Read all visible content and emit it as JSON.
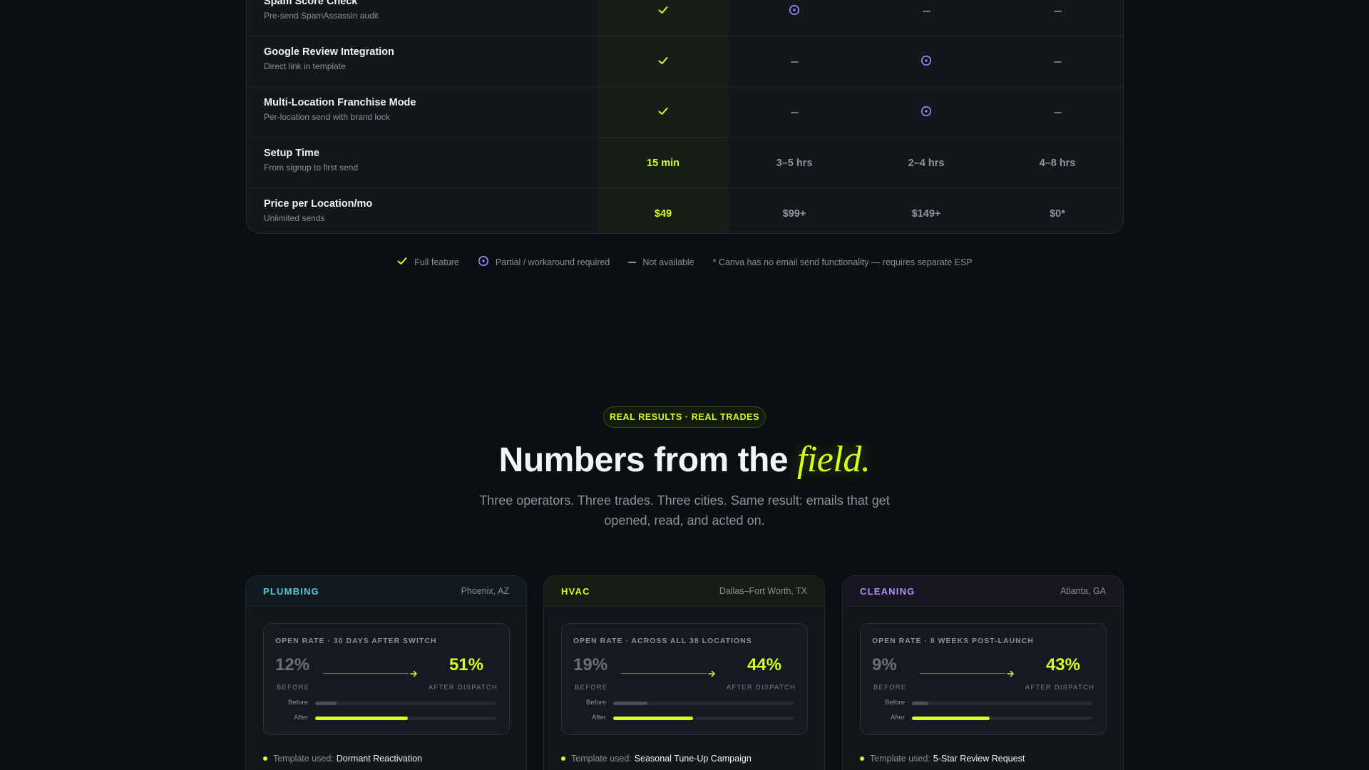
{
  "comparison": {
    "rows": [
      {
        "title": "Spam Score Check",
        "sub": "Pre-send SpamAssassin audit",
        "cells": [
          "check",
          "partial",
          "dash",
          "dash"
        ]
      },
      {
        "title": "Google Review Integration",
        "sub": "Direct link in template",
        "cells": [
          "check",
          "dash",
          "partial",
          "dash"
        ]
      },
      {
        "title": "Multi-Location Franchise Mode",
        "sub": "Per-location send with brand lock",
        "cells": [
          "check",
          "dash",
          "partial",
          "dash"
        ]
      },
      {
        "title": "Setup Time",
        "sub": "From signup to first send",
        "cells": [
          "15 min",
          "3–5 hrs",
          "2–4 hrs",
          "4–8 hrs"
        ]
      },
      {
        "title": "Price per Location/mo",
        "sub": "Unlimited sends",
        "cells": [
          "$49",
          "$99+",
          "$149+",
          "$0*"
        ]
      }
    ],
    "legend": {
      "full": "Full feature",
      "partial": "Partial / workaround required",
      "none": "Not available",
      "note": "* Canva has no email send functionality — requires separate ESP"
    }
  },
  "results": {
    "pill": "REAL RESULTS · REAL TRADES",
    "headline_main": "Numbers from the ",
    "headline_accent": "field.",
    "subhead": "Three operators. Three trades. Three cities. Same result: emails that get opened, read, and acted on.",
    "cards": [
      {
        "trade": "PLUMBING",
        "trade_color": "#4fc8e0",
        "city": "Phoenix, AZ",
        "stat_label": "OPEN RATE · 30 DAYS AFTER SWITCH",
        "before": "12%",
        "after": "51%",
        "before_label": "BEFORE",
        "after_label": "AFTER DISPATCH",
        "bar_before_label": "Before",
        "bar_after_label": "After",
        "before_fraction": 0.12,
        "after_fraction": 0.51,
        "template_prefix": "Template used:",
        "template": "Dormant Reactivation"
      },
      {
        "trade": "HVAC",
        "trade_color": "#d4ff1f",
        "city": "Dallas–Fort Worth, TX",
        "stat_label": "OPEN RATE · ACROSS ALL 38 LOCATIONS",
        "before": "19%",
        "after": "44%",
        "before_label": "BEFORE",
        "after_label": "AFTER DISPATCH",
        "bar_before_label": "Before",
        "bar_after_label": "After",
        "before_fraction": 0.19,
        "after_fraction": 0.44,
        "template_prefix": "Template used:",
        "template": "Seasonal Tune-Up Campaign"
      },
      {
        "trade": "CLEANING",
        "trade_color": "#b18cff",
        "city": "Atlanta, GA",
        "stat_label": "OPEN RATE · 8 WEEKS POST-LAUNCH",
        "before": "9%",
        "after": "43%",
        "before_label": "BEFORE",
        "after_label": "AFTER DISPATCH",
        "bar_before_label": "Before",
        "bar_after_label": "After",
        "before_fraction": 0.09,
        "after_fraction": 0.43,
        "template_prefix": "Template used:",
        "template": "5-Star Review Request"
      }
    ]
  },
  "colors": {
    "accent": "#d4ff1f",
    "partial": "#a98bff",
    "background": "#0b0e12"
  }
}
